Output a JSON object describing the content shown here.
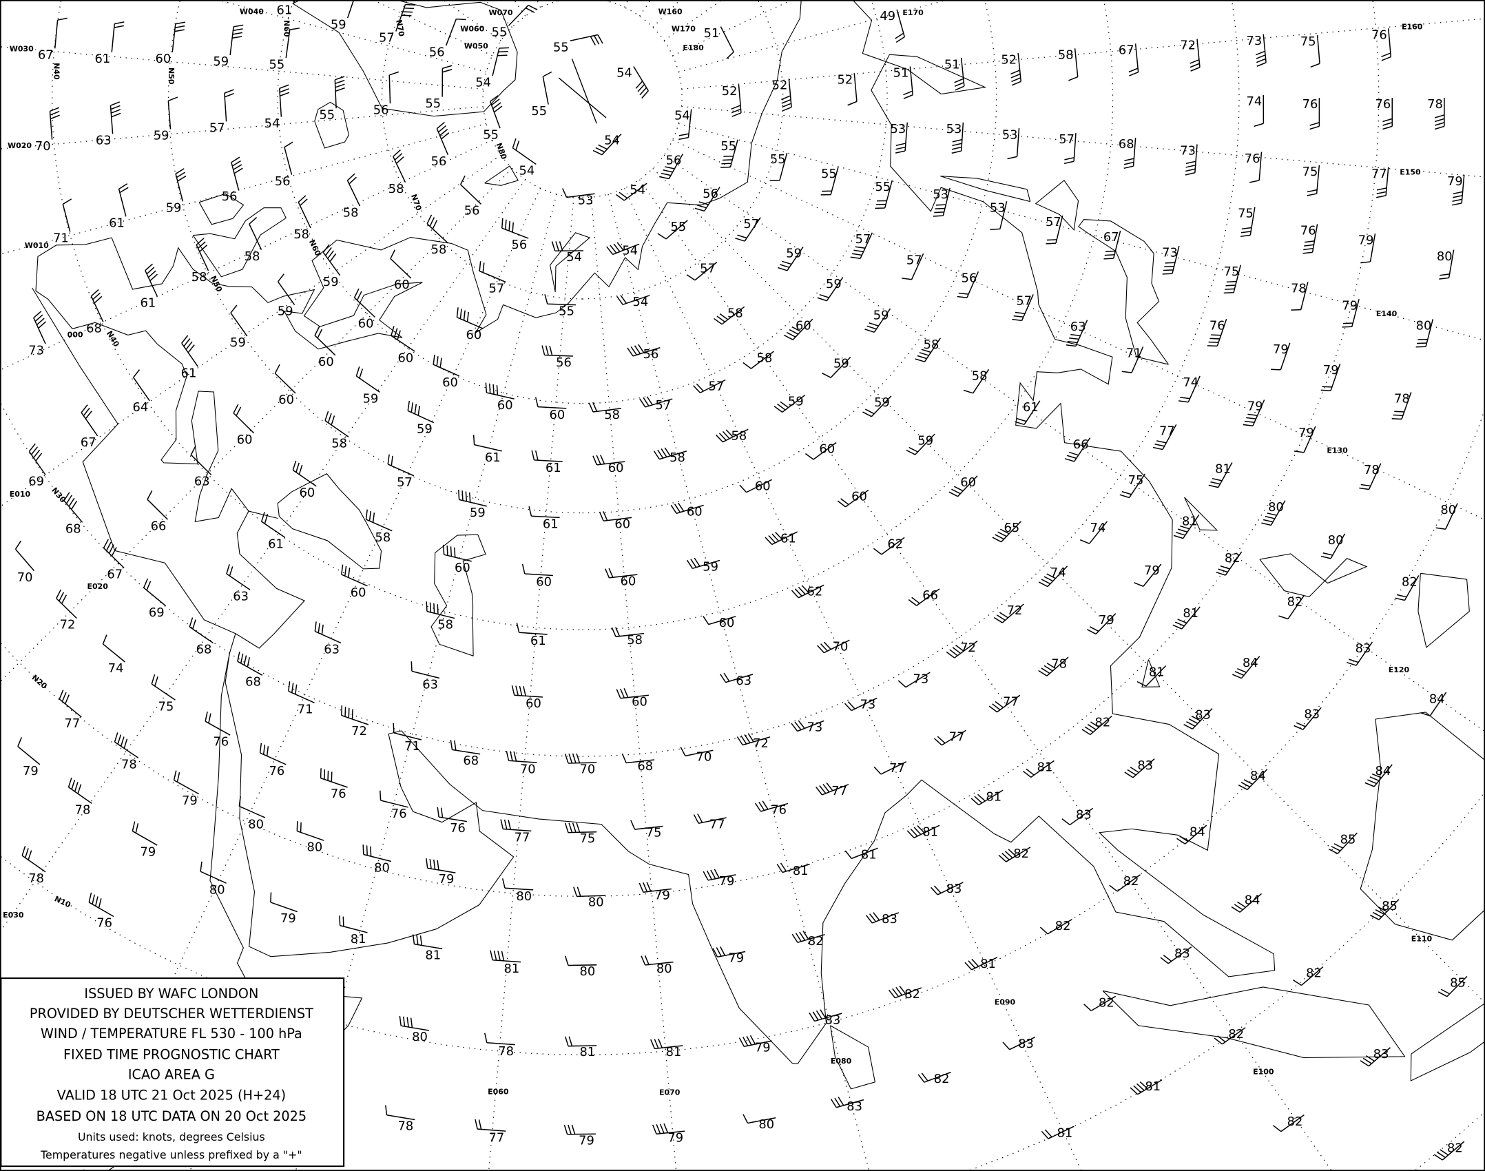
{
  "legend": {
    "lines": [
      "ISSUED BY WAFC LONDON",
      "PROVIDED BY DEUTSCHER WETTERDIENST",
      "WIND / TEMPERATURE FL 530 - 100 hPa",
      "FIXED TIME PROGNOSTIC CHART",
      "ICAO AREA G",
      "VALID 18 UTC 21 Oct 2025 (H+24)",
      "BASED ON 18 UTC DATA ON 20 Oct 2025"
    ],
    "units": "Units used: knots, degrees Celsius",
    "note": "Temperatures negative unless prefixed by a \"+\""
  },
  "graticule": {
    "meridian_labels": [
      "W040",
      "W050",
      "W060",
      "W070",
      "W160",
      "W170",
      "E180",
      "E170",
      "E160",
      "E150",
      "E140",
      "E130",
      "E120",
      "E110",
      "E100",
      "E090",
      "E080",
      "E070",
      "E060",
      "E030",
      "E020",
      "E010",
      "000",
      "W010",
      "W020",
      "W030"
    ],
    "parallel_labels": [
      "N10",
      "N20",
      "N30",
      "N40",
      "N40",
      "N50",
      "N50",
      "N60",
      "N60",
      "N70",
      "N70",
      "N80"
    ]
  },
  "units": {
    "wind": "knots",
    "temperature": "degrees Celsius"
  },
  "temperatures": [
    "67",
    "61",
    "60",
    "59",
    "55",
    "61",
    "59",
    "57",
    "56",
    "55",
    "55",
    "54",
    "51",
    "49",
    "51",
    "52",
    "58",
    "67",
    "72",
    "73",
    "75",
    "76",
    "70",
    "63",
    "59",
    "57",
    "54",
    "55",
    "56",
    "55",
    "54",
    "55",
    "55",
    "54",
    "52",
    "52",
    "52",
    "51",
    "53",
    "53",
    "53",
    "57",
    "68",
    "73",
    "74",
    "76",
    "76",
    "78",
    "71",
    "61",
    "59",
    "56",
    "56",
    "58",
    "58",
    "56",
    "56",
    "54",
    "54",
    "56",
    "53",
    "54",
    "56",
    "55",
    "55",
    "55",
    "55",
    "53",
    "53",
    "57",
    "67",
    "73",
    "76",
    "75",
    "77",
    "79",
    "58",
    "58",
    "58",
    "56",
    "55",
    "57",
    "59",
    "57",
    "57",
    "56",
    "57",
    "63",
    "71",
    "74",
    "75",
    "76",
    "79",
    "80",
    "58",
    "59",
    "60",
    "57",
    "54",
    "54",
    "57",
    "59",
    "59",
    "58",
    "58",
    "61",
    "66",
    "75",
    "78",
    "79",
    "80",
    "61",
    "59",
    "60",
    "60",
    "60",
    "55",
    "54",
    "58",
    "60",
    "59",
    "59",
    "68",
    "73",
    "59",
    "60",
    "56",
    "56",
    "58",
    "57",
    "59",
    "61",
    "60",
    "59",
    "60",
    "60",
    "60",
    "58",
    "57",
    "58",
    "60",
    "59",
    "60",
    "65",
    "74",
    "75",
    "77",
    "76",
    "79",
    "79",
    "78",
    "79",
    "79",
    "78",
    "81",
    "80",
    "80",
    "80",
    "82",
    "81",
    "64",
    "60",
    "58",
    "59",
    "61",
    "61",
    "60",
    "58",
    "60",
    "60",
    "67",
    "69",
    "63",
    "57",
    "60",
    "59",
    "61",
    "60",
    "60",
    "61",
    "62",
    "66",
    "72",
    "74",
    "79",
    "79",
    "81",
    "78",
    "82",
    "83",
    "84",
    "68",
    "66",
    "61",
    "58",
    "60",
    "60",
    "60",
    "59",
    "62",
    "60",
    "63",
    "60",
    "67",
    "70",
    "69",
    "72",
    "58",
    "61",
    "58",
    "70",
    "72",
    "73",
    "73",
    "73",
    "72",
    "70",
    "63",
    "60",
    "60",
    "63",
    "68",
    "63",
    "68",
    "74",
    "75",
    "71",
    "72",
    "71",
    "68",
    "70",
    "70",
    "68",
    "76",
    "77",
    "78",
    "79",
    "79",
    "76",
    "76",
    "76",
    "76",
    "77",
    "75",
    "75",
    "77",
    "76",
    "77",
    "77",
    "77",
    "77",
    "82",
    "81",
    "81",
    "81",
    "81",
    "81",
    "81",
    "83",
    "83",
    "83",
    "83",
    "84",
    "84",
    "84",
    "84",
    "85",
    "82",
    "82",
    "83",
    "83",
    "82",
    "82",
    "83",
    "84",
    "85",
    "82",
    "85",
    "81",
    "82",
    "82",
    "82",
    "83",
    "83",
    "83",
    "82",
    "83",
    "81",
    "82",
    "81",
    "82",
    "78",
    "80",
    "80",
    "80",
    "79",
    "80",
    "80",
    "79",
    "79",
    "80",
    "79",
    "78",
    "76",
    "79",
    "81",
    "81",
    "81",
    "80",
    "80",
    "79",
    "80",
    "78",
    "81",
    "81",
    "79",
    "78",
    "77",
    "79",
    "79",
    "80",
    "82"
  ]
}
